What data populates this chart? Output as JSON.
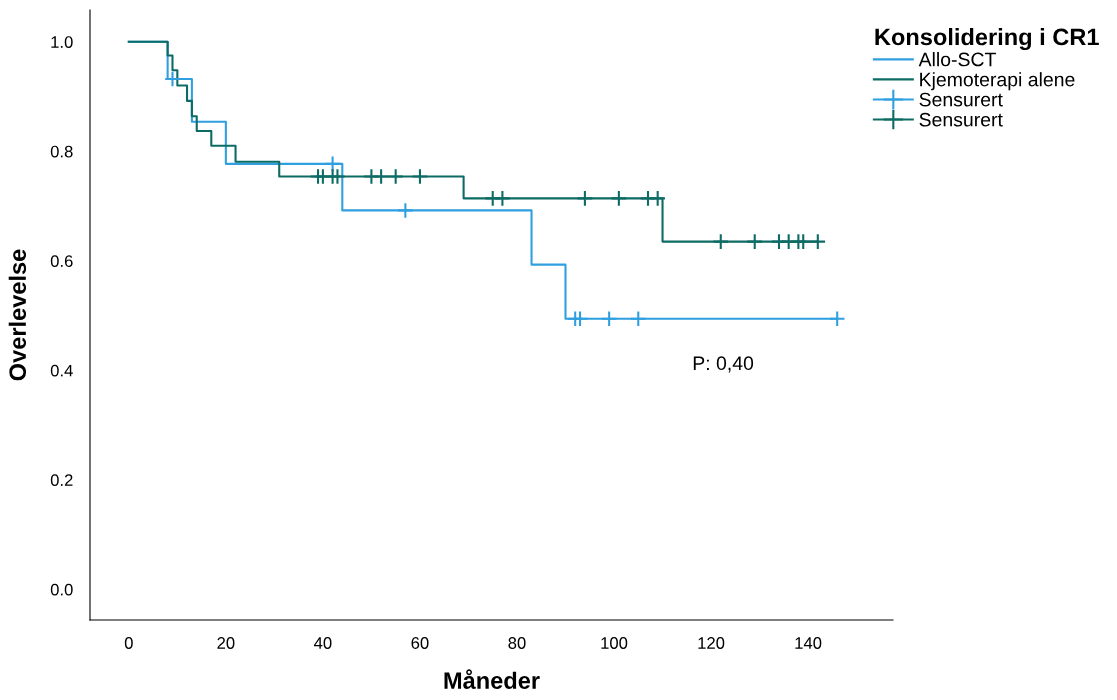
{
  "chart_data": {
    "type": "step",
    "xlabel": "Måneder",
    "ylabel": "Overlevelse",
    "legend_title": "Konsolidering i CR1",
    "legend": "top right",
    "grid": false,
    "xlim": [
      -8,
      157.5
    ],
    "ylim": [
      -0.056,
      1.058
    ],
    "xticks": [
      0,
      20,
      40,
      60,
      80,
      100,
      120,
      140
    ],
    "yticks": [
      {
        "value": 0,
        "label": "0.0"
      },
      {
        "value": 0.2,
        "label": "0.2"
      },
      {
        "value": 0.4,
        "label": "0.4"
      },
      {
        "value": 0.6,
        "label": "0.6"
      },
      {
        "value": 0.8,
        "label": "0.8"
      },
      {
        "value": 1,
        "label": "1.0"
      }
    ],
    "annotations": [
      "P: 0,40"
    ],
    "series": [
      {
        "name": "Allo-SCT",
        "color": "#2f9fe0",
        "x": [
          0,
          8,
          13,
          20,
          44,
          83,
          90,
          146
        ],
        "values": [
          1.0,
          0.932,
          0.854,
          0.777,
          0.692,
          0.593,
          0.494,
          0.494
        ]
      },
      {
        "name": "Kjemoterapi alene",
        "color": "#0c6b64",
        "x": [
          0,
          8,
          9,
          10,
          12,
          13,
          14,
          17,
          22,
          31,
          69,
          110,
          142
        ],
        "values": [
          1.0,
          0.975,
          0.948,
          0.92,
          0.892,
          0.864,
          0.837,
          0.81,
          0.781,
          0.754,
          0.714,
          0.635,
          0.635
        ]
      },
      {
        "name": "Sensurert",
        "color": "#2f9fe0",
        "type": "scatter",
        "marker": "cross",
        "x": [
          9,
          42,
          57,
          92,
          93,
          99,
          105,
          146
        ],
        "values": [
          0.932,
          0.777,
          0.692,
          0.494,
          0.494,
          0.494,
          0.494,
          0.494
        ]
      },
      {
        "name": "Sensurert",
        "color": "#0c6b64",
        "type": "scatter",
        "marker": "cross",
        "x": [
          39,
          40,
          42,
          43,
          50,
          52,
          55,
          60,
          75,
          77,
          94,
          101,
          107,
          109,
          122,
          129,
          134,
          136,
          138,
          139,
          142
        ],
        "values": [
          0.754,
          0.754,
          0.754,
          0.754,
          0.754,
          0.754,
          0.754,
          0.754,
          0.714,
          0.714,
          0.714,
          0.714,
          0.714,
          0.714,
          0.635,
          0.635,
          0.635,
          0.635,
          0.635,
          0.635,
          0.635
        ]
      }
    ]
  }
}
